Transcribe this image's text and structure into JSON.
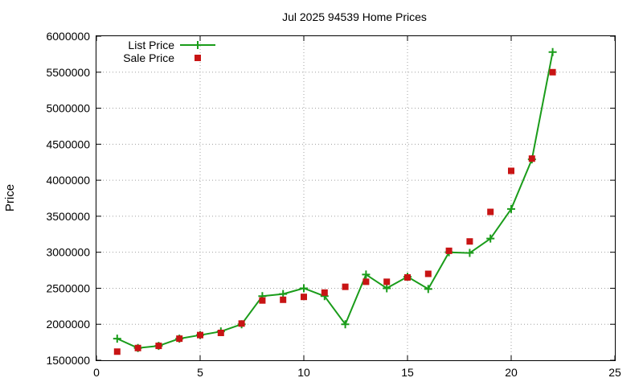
{
  "chart_data": {
    "type": "line",
    "title": "Jul 2025 94539 Home Prices",
    "xlabel": "",
    "ylabel": "Price",
    "xlim": [
      0,
      25
    ],
    "ylim": [
      1500000,
      6000000
    ],
    "x_ticks": [
      0,
      5,
      10,
      15,
      20,
      25
    ],
    "y_ticks": [
      1500000,
      2000000,
      2500000,
      3000000,
      3500000,
      4000000,
      4500000,
      5000000,
      5500000,
      6000000
    ],
    "grid": true,
    "legend_position": "top-left",
    "series": [
      {
        "name": "List Price",
        "style": "line-with-plus-markers",
        "color": "#1a9c1a",
        "x": [
          1,
          2,
          3,
          4,
          5,
          6,
          7,
          8,
          9,
          10,
          11,
          12,
          13,
          14,
          15,
          16,
          17,
          18,
          19,
          20,
          21,
          22
        ],
        "values": [
          1800000,
          1670000,
          1700000,
          1800000,
          1850000,
          1900000,
          2000000,
          2390000,
          2420000,
          2500000,
          2390000,
          2000000,
          2690000,
          2500000,
          2660000,
          2490000,
          3000000,
          2990000,
          3190000,
          3600000,
          4290000,
          5780000
        ]
      },
      {
        "name": "Sale Price",
        "style": "square-markers",
        "color": "#c81414",
        "x": [
          1,
          2,
          3,
          4,
          5,
          6,
          7,
          8,
          9,
          10,
          11,
          12,
          13,
          14,
          15,
          16,
          17,
          18,
          19,
          20,
          21,
          22
        ],
        "values": [
          1620000,
          1670000,
          1700000,
          1800000,
          1850000,
          1880000,
          2010000,
          2330000,
          2340000,
          2380000,
          2440000,
          2520000,
          2590000,
          2590000,
          2650000,
          2700000,
          3020000,
          3150000,
          3560000,
          4130000,
          4300000,
          5500000
        ]
      }
    ]
  }
}
